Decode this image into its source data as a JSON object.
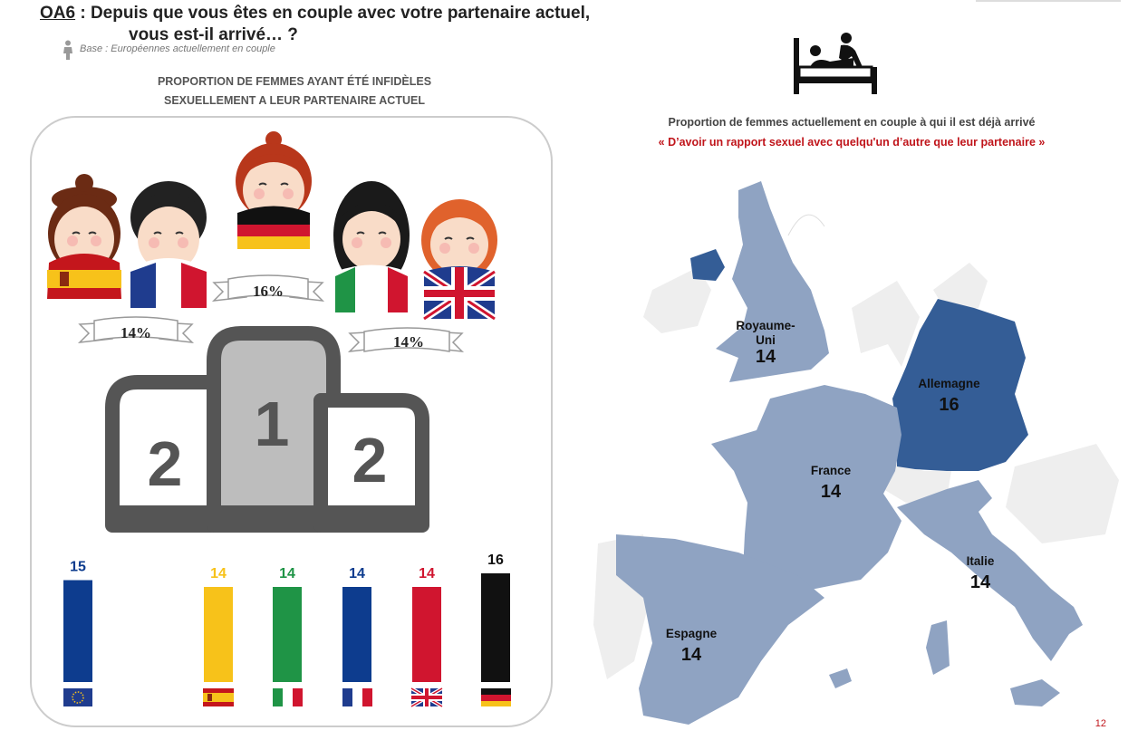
{
  "header": {
    "code": "OA6",
    "question_part1": " : Depuis que vous êtes en couple avec votre partenaire actuel,",
    "question_part2": "vous est-il arrivé… ?",
    "base": "Base : Européennes actuellement en couple"
  },
  "left": {
    "heading_line1": "PROPORTION DE FEMMES AYANT ÉTÉ INFIDÈLES",
    "heading_line2": "SEXUELLEMENT A LEUR PARTENAIRE ACTUEL",
    "podium": {
      "first_label": "1",
      "second_label_left": "2",
      "second_label_right": "2",
      "first_pct": "16%",
      "left_pct": "14%",
      "right_pct": "14%"
    }
  },
  "chart_data": {
    "type": "bar",
    "categories": [
      "Europe",
      "Espagne",
      "Italie",
      "France",
      "Royaume-Uni",
      "Allemagne"
    ],
    "values": [
      15,
      14,
      14,
      14,
      14,
      16
    ],
    "value_labels": [
      "15",
      "14",
      "14",
      "14",
      "14",
      "16"
    ],
    "colors": [
      "#0d3c8e",
      "#f7c21a",
      "#1f9446",
      "#0d3c8e",
      "#d0152f",
      "#111111"
    ],
    "ylim": [
      0,
      16
    ],
    "title": "",
    "xlabel": "",
    "ylabel": ""
  },
  "right": {
    "heading_line1": "Proportion de femmes actuellement en couple à qui il est déjà arrivé",
    "heading_line2": "« D’avoir un rapport sexuel avec quelqu'un d’autre que leur partenaire »",
    "map": {
      "uk_name_1": "Royaume-",
      "uk_name_2": "Uni",
      "uk_value": "14",
      "de_name": "Allemagne",
      "de_value": "16",
      "fr_name": "France",
      "fr_value": "14",
      "it_name": "Italie",
      "it_value": "14",
      "es_name": "Espagne",
      "es_value": "14"
    },
    "colors": {
      "highlight": "#345d96",
      "country": "#8fa3c2",
      "other": "#eeeeee"
    }
  },
  "footer": {
    "page": "12"
  }
}
